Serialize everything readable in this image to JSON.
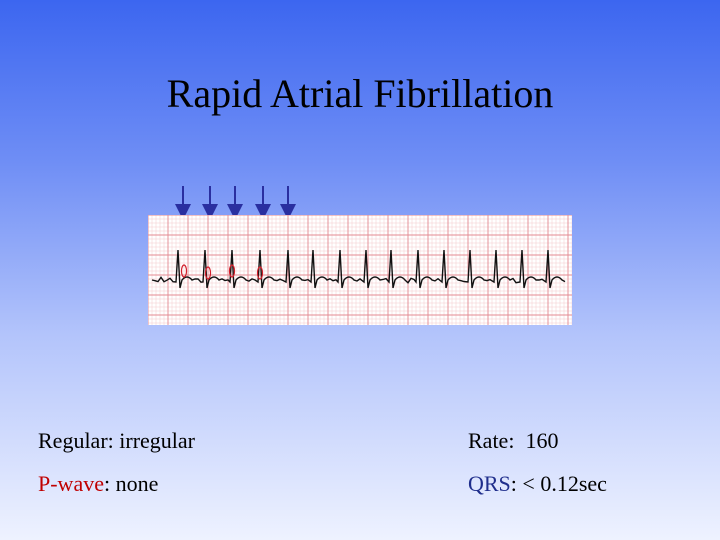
{
  "slide": {
    "title": "Rapid Atrial Fibrillation"
  },
  "info": {
    "regular_label": "Regular:",
    "regular_value": "irregular",
    "rate_label": "Rate:",
    "rate_value": "160",
    "pwave_label": "P-wave",
    "pwave_value": ": none",
    "qrs_label": "QRS",
    "qrs_value": ": < 0.12sec"
  },
  "colors": {
    "arrow": "#2a2fa0",
    "grid_minor": "#f3c9cc",
    "grid_major": "#e38a92",
    "trace": "#111111",
    "marker": "#d21f2b"
  }
}
